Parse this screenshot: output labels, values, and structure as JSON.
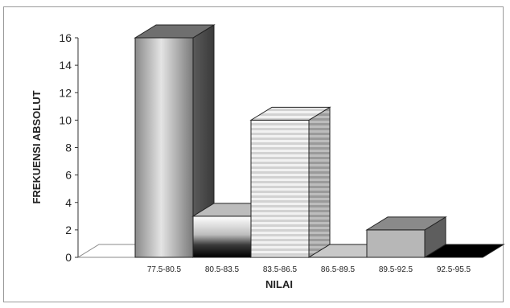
{
  "chart_data": {
    "type": "bar",
    "style": "3d",
    "categories": [
      "77.5-80.5",
      "80.5-83.5",
      "83.5-86.5",
      "86.5-89.5",
      "89.5-92.5",
      "92.5-95.5"
    ],
    "values": [
      16,
      3,
      10,
      0,
      2,
      0
    ],
    "xlabel": "NILAI",
    "ylabel": "FREKUENSI ABSOLUT",
    "ylim": [
      0,
      16
    ],
    "yticks": [
      "0",
      "2",
      "4",
      "6",
      "8",
      "10",
      "12",
      "14",
      "16"
    ],
    "grid": false,
    "legend": "none"
  }
}
